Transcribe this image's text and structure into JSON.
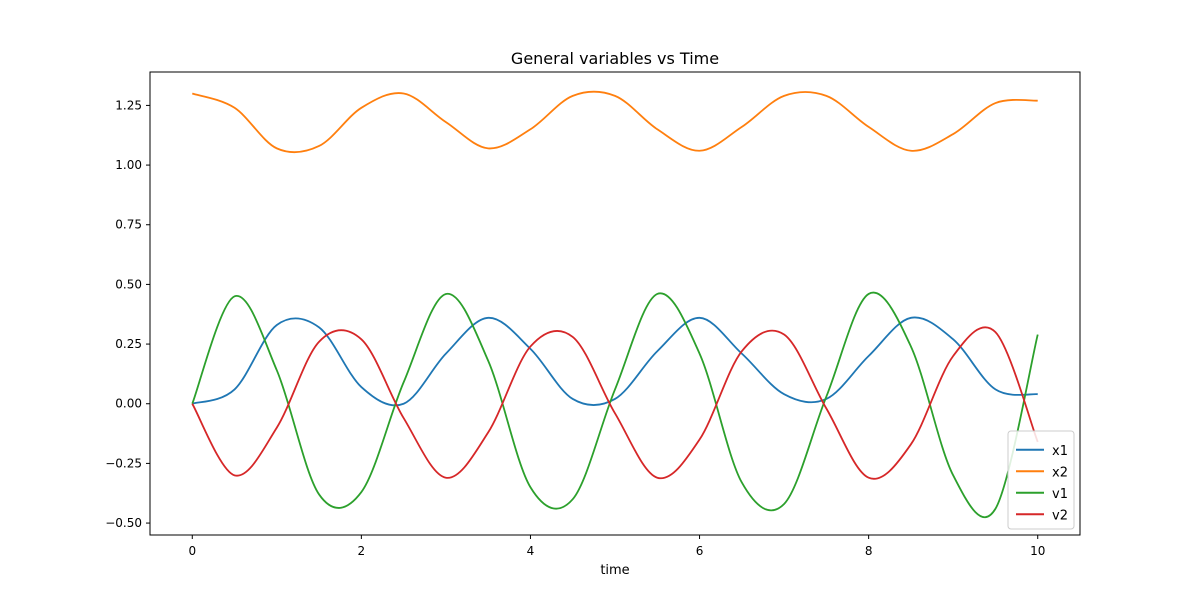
{
  "chart_data": {
    "type": "line",
    "title": "General variables vs Time",
    "xlabel": "time",
    "ylabel": "",
    "xlim": [
      -0.5,
      10.5
    ],
    "ylim": [
      -0.55,
      1.39
    ],
    "xticks": [
      0,
      2,
      4,
      6,
      8,
      10
    ],
    "xtick_labels": [
      "0",
      "2",
      "4",
      "6",
      "8",
      "10"
    ],
    "yticks": [
      -0.5,
      -0.25,
      0.0,
      0.25,
      0.5,
      0.75,
      1.0,
      1.25
    ],
    "ytick_labels": [
      "−0.50",
      "−0.25",
      "0.00",
      "0.25",
      "0.50",
      "0.75",
      "1.00",
      "1.25"
    ],
    "grid": false,
    "legend_position": "lower-right",
    "series": [
      {
        "name": "x1",
        "color": "#1f77b4",
        "x": [
          0,
          0.5,
          1,
          1.5,
          2,
          2.5,
          3,
          3.5,
          4,
          4.5,
          5,
          5.5,
          6,
          6.5,
          7,
          7.5,
          8,
          8.5,
          9,
          9.5,
          10
        ],
        "values": [
          0,
          0.06,
          0.33,
          0.32,
          0.07,
          0.0,
          0.21,
          0.36,
          0.23,
          0.02,
          0.02,
          0.22,
          0.36,
          0.21,
          0.04,
          0.02,
          0.2,
          0.36,
          0.27,
          0.06,
          0.04
        ]
      },
      {
        "name": "x2",
        "color": "#ff7f0e",
        "x": [
          0,
          0.5,
          1,
          1.5,
          2,
          2.5,
          3,
          3.5,
          4,
          4.5,
          5,
          5.5,
          6,
          6.5,
          7,
          7.5,
          8,
          8.5,
          9,
          9.5,
          10
        ],
        "values": [
          1.3,
          1.24,
          1.07,
          1.08,
          1.24,
          1.3,
          1.18,
          1.07,
          1.15,
          1.29,
          1.29,
          1.15,
          1.06,
          1.16,
          1.29,
          1.29,
          1.16,
          1.06,
          1.13,
          1.26,
          1.27
        ]
      },
      {
        "name": "v1",
        "color": "#2ca02c",
        "x": [
          0,
          0.5,
          1,
          1.5,
          2,
          2.5,
          3,
          3.5,
          4,
          4.5,
          5,
          5.5,
          6,
          6.5,
          7,
          7.5,
          8,
          8.5,
          9,
          9.5,
          10
        ],
        "values": [
          0,
          0.45,
          0.14,
          -0.38,
          -0.37,
          0.09,
          0.46,
          0.18,
          -0.35,
          -0.4,
          0.06,
          0.46,
          0.21,
          -0.33,
          -0.42,
          0.03,
          0.46,
          0.24,
          -0.3,
          -0.44,
          0.29
        ]
      },
      {
        "name": "v2",
        "color": "#d62728",
        "x": [
          0,
          0.5,
          1,
          1.5,
          2,
          2.5,
          3,
          3.5,
          4,
          4.5,
          5,
          5.5,
          6,
          6.5,
          7,
          7.5,
          8,
          8.5,
          9,
          9.5,
          10
        ],
        "values": [
          0,
          -0.3,
          -0.1,
          0.26,
          0.27,
          -0.06,
          -0.31,
          -0.12,
          0.24,
          0.28,
          -0.04,
          -0.31,
          -0.15,
          0.22,
          0.29,
          -0.02,
          -0.31,
          -0.17,
          0.2,
          0.3,
          -0.16
        ]
      }
    ]
  }
}
